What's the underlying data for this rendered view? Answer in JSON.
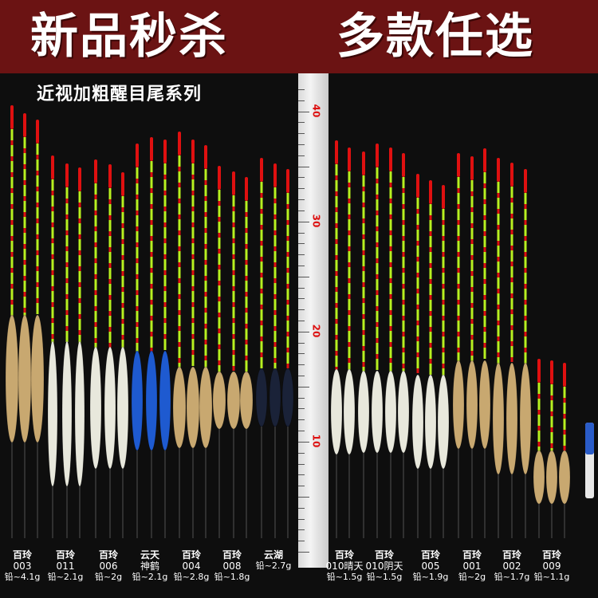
{
  "banner": {
    "left_text": "新品秒杀",
    "right_text": "多款任选"
  },
  "subtitle": "近视加粗醒目尾系列",
  "ruler": {
    "labels": [
      "10",
      "20",
      "30",
      "40"
    ]
  },
  "groups": [
    {
      "name": "百玲",
      "code": "003",
      "weight": "铅~4.1g"
    },
    {
      "name": "百玲",
      "code": "011",
      "weight": "铅~2.1g"
    },
    {
      "name": "百玲",
      "code": "006",
      "weight": "铅~2g"
    },
    {
      "name": "云天",
      "code": "神鹤",
      "weight": "铅~2.1g"
    },
    {
      "name": "百玲",
      "code": "004",
      "weight": "铅~2.8g"
    },
    {
      "name": "百玲",
      "code": "008",
      "weight": "铅~1.8g"
    },
    {
      "name": "云湖",
      "code": "",
      "weight": "铅~2.7g"
    },
    {
      "name": "百玲",
      "code": "010晴天",
      "weight": "铅~1.5g"
    },
    {
      "name": "百玲",
      "code": "010阴天",
      "weight": "铅~1.5g"
    },
    {
      "name": "百玲",
      "code": "005",
      "weight": "铅~1.9g"
    },
    {
      "name": "百玲",
      "code": "001",
      "weight": "铅~2g"
    },
    {
      "name": "百玲",
      "code": "002",
      "weight": "铅~1.7g"
    },
    {
      "name": "百玲",
      "code": "009",
      "weight": "铅~1.1g"
    }
  ],
  "colors": {
    "banner_bg": "#6b1313",
    "tip_red": "#e01010",
    "tip_green": "#b8f020",
    "body_wood": "#c8a870",
    "body_white": "#e8e8dc",
    "body_blue": "#1e5ad0",
    "body_navy": "#1a2238"
  }
}
